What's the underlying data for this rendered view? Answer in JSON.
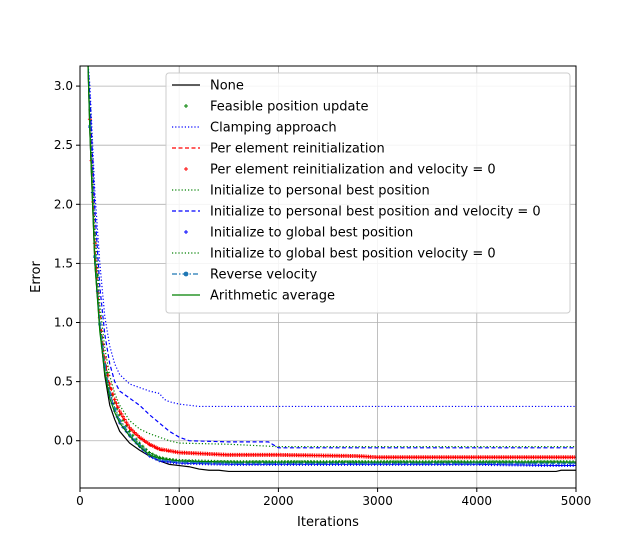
{
  "chart_data": {
    "type": "line",
    "title": "",
    "xlabel": "Iterations",
    "ylabel": "Error",
    "xlim": [
      0,
      5000
    ],
    "ylim": [
      -0.4,
      3.17
    ],
    "xticks": [
      0,
      1000,
      2000,
      3000,
      4000,
      5000
    ],
    "xtick_labels": [
      "0",
      "1000",
      "2000",
      "3000",
      "4000",
      "5000"
    ],
    "yticks": [
      0.0,
      0.5,
      1.0,
      1.5,
      2.0,
      2.5,
      3.0
    ],
    "ytick_labels": [
      "0.0",
      "0.5",
      "1.0",
      "1.5",
      "2.0",
      "2.5",
      "3.0"
    ],
    "grid": true,
    "legend_position": "top-right",
    "series": [
      {
        "name": "None",
        "color": "#000000",
        "linestyle": "solid",
        "marker": "none",
        "width": 1.2,
        "x": [
          80,
          100,
          150,
          200,
          250,
          300,
          350,
          400,
          500,
          600,
          700,
          800,
          900,
          1000,
          1100,
          1200,
          1300,
          1400,
          1500,
          2000,
          3000,
          4000,
          4800,
          4850,
          5000
        ],
        "y": [
          3.2,
          2.6,
          1.5,
          0.95,
          0.55,
          0.3,
          0.18,
          0.08,
          -0.02,
          -0.08,
          -0.13,
          -0.17,
          -0.2,
          -0.21,
          -0.22,
          -0.24,
          -0.25,
          -0.25,
          -0.26,
          -0.26,
          -0.26,
          -0.26,
          -0.26,
          -0.25,
          -0.25
        ]
      },
      {
        "name": "Feasible position update",
        "color": "#008000",
        "linestyle": "none",
        "marker": "plus",
        "width": 1,
        "x": [
          80,
          100,
          150,
          200,
          250,
          300,
          350,
          400,
          500,
          600,
          700,
          800,
          900,
          1000,
          1200,
          1500,
          2000,
          3000,
          4000,
          5000
        ],
        "y": [
          3.2,
          2.8,
          1.75,
          1.05,
          0.7,
          0.45,
          0.32,
          0.22,
          0.08,
          -0.02,
          -0.1,
          -0.14,
          -0.16,
          -0.17,
          -0.18,
          -0.18,
          -0.18,
          -0.18,
          -0.18,
          -0.18
        ]
      },
      {
        "name": "Clamping approach",
        "color": "#0000ff",
        "linestyle": "dotted",
        "marker": "none",
        "width": 1.2,
        "x": [
          80,
          100,
          150,
          200,
          250,
          300,
          350,
          400,
          500,
          600,
          700,
          800,
          850,
          900,
          1000,
          1100,
          1200,
          1500,
          2000,
          3000,
          4000,
          5000
        ],
        "y": [
          3.2,
          3.0,
          2.1,
          1.5,
          1.05,
          0.8,
          0.65,
          0.56,
          0.48,
          0.45,
          0.42,
          0.4,
          0.35,
          0.33,
          0.31,
          0.3,
          0.29,
          0.29,
          0.29,
          0.29,
          0.29,
          0.29
        ]
      },
      {
        "name": "Per element reinitialization",
        "color": "#ff0000",
        "linestyle": "dashed",
        "marker": "none",
        "width": 1.2,
        "x": [
          80,
          100,
          150,
          200,
          250,
          300,
          350,
          400,
          500,
          600,
          700,
          800,
          1000,
          1500,
          2000,
          2800,
          3000,
          4000,
          5000
        ],
        "y": [
          3.2,
          2.7,
          1.65,
          1.02,
          0.68,
          0.46,
          0.34,
          0.24,
          0.1,
          0.02,
          -0.04,
          -0.08,
          -0.1,
          -0.12,
          -0.12,
          -0.13,
          -0.14,
          -0.14,
          -0.14
        ]
      },
      {
        "name": "Per element reinitialization and velocity = 0",
        "color": "#ff0000",
        "linestyle": "none",
        "marker": "plus",
        "width": 1,
        "x": [
          80,
          100,
          150,
          200,
          250,
          300,
          350,
          400,
          500,
          600,
          700,
          800,
          1000,
          1500,
          2000,
          2800,
          3000,
          4000,
          5000
        ],
        "y": [
          3.2,
          2.72,
          1.67,
          1.04,
          0.7,
          0.48,
          0.35,
          0.25,
          0.11,
          0.03,
          -0.03,
          -0.07,
          -0.1,
          -0.12,
          -0.12,
          -0.13,
          -0.14,
          -0.14,
          -0.14
        ]
      },
      {
        "name": "Initialize to personal best position",
        "color": "#008000",
        "linestyle": "dotted",
        "marker": "none",
        "width": 1.2,
        "x": [
          80,
          100,
          150,
          200,
          250,
          300,
          350,
          400,
          500,
          600,
          700,
          800,
          900,
          1000,
          1500,
          2000,
          3000,
          4000,
          5000
        ],
        "y": [
          3.2,
          2.85,
          1.8,
          1.15,
          0.78,
          0.55,
          0.4,
          0.3,
          0.17,
          0.1,
          0.06,
          0.03,
          0.0,
          -0.02,
          -0.03,
          -0.05,
          -0.05,
          -0.05,
          -0.05
        ]
      },
      {
        "name": "Initialize to personal best position and velocity = 0",
        "color": "#0000ff",
        "linestyle": "dashed",
        "marker": "none",
        "width": 1.2,
        "x": [
          80,
          100,
          150,
          200,
          250,
          300,
          350,
          400,
          500,
          600,
          700,
          800,
          900,
          1000,
          1100,
          1500,
          1900,
          2000,
          3000,
          4000,
          5000
        ],
        "y": [
          3.2,
          2.9,
          1.95,
          1.3,
          0.9,
          0.65,
          0.5,
          0.42,
          0.36,
          0.3,
          0.22,
          0.15,
          0.08,
          0.03,
          0.0,
          -0.01,
          -0.01,
          -0.06,
          -0.06,
          -0.06,
          -0.06
        ]
      },
      {
        "name": "Initialize to global best position",
        "color": "#0000ff",
        "linestyle": "none",
        "marker": "plus",
        "width": 1,
        "x": [
          80,
          100,
          150,
          200,
          250,
          300,
          350,
          400,
          500,
          600,
          700,
          800,
          1000,
          1500,
          2000,
          3000,
          4000,
          4800,
          5000
        ],
        "y": [
          3.2,
          2.65,
          1.55,
          0.98,
          0.62,
          0.38,
          0.25,
          0.15,
          0.04,
          -0.05,
          -0.13,
          -0.17,
          -0.19,
          -0.2,
          -0.2,
          -0.2,
          -0.2,
          -0.21,
          -0.21
        ]
      },
      {
        "name": "Initialize to global best position velocity = 0",
        "color": "#008000",
        "linestyle": "dotted",
        "marker": "none",
        "width": 1.2,
        "x": [
          80,
          100,
          150,
          200,
          250,
          300,
          350,
          400,
          500,
          600,
          700,
          800,
          1000,
          1500,
          2000,
          3000,
          4000,
          5000
        ],
        "y": [
          3.2,
          2.7,
          1.6,
          1.0,
          0.66,
          0.42,
          0.28,
          0.18,
          0.06,
          -0.03,
          -0.1,
          -0.14,
          -0.16,
          -0.17,
          -0.17,
          -0.17,
          -0.17,
          -0.17
        ]
      },
      {
        "name": "Reverse velocity",
        "color": "#1f77b4",
        "linestyle": "dashdot",
        "marker": "dot",
        "width": 1.2,
        "x": [
          80,
          100,
          150,
          200,
          250,
          300,
          350,
          400,
          500,
          600,
          700,
          800,
          1000,
          1500,
          2000,
          3000,
          4000,
          5000
        ],
        "y": [
          3.2,
          2.66,
          1.56,
          0.99,
          0.64,
          0.4,
          0.27,
          0.17,
          0.05,
          -0.04,
          -0.12,
          -0.16,
          -0.18,
          -0.19,
          -0.19,
          -0.19,
          -0.19,
          -0.19
        ]
      },
      {
        "name": "Arithmetic average",
        "color": "#008000",
        "linestyle": "solid",
        "marker": "none",
        "width": 1.2,
        "x": [
          80,
          100,
          150,
          200,
          250,
          300,
          350,
          400,
          500,
          600,
          700,
          800,
          1000,
          1500,
          2000,
          3000,
          4000,
          5000
        ],
        "y": [
          3.2,
          2.6,
          1.5,
          0.92,
          0.58,
          0.36,
          0.24,
          0.15,
          0.04,
          -0.05,
          -0.12,
          -0.15,
          -0.17,
          -0.18,
          -0.18,
          -0.18,
          -0.18,
          -0.18
        ]
      }
    ]
  }
}
